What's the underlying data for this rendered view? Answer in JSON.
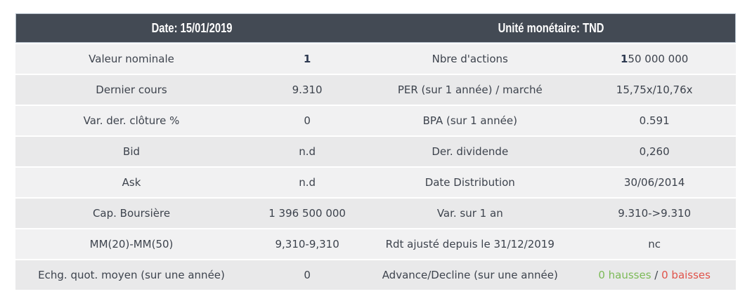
{
  "header": {
    "left_title": "Date: 15/01/2019",
    "right_title": "Unité monétaire: TND"
  },
  "colors": {
    "header_bg": "#434a54",
    "header_text": "#ffffff",
    "row_light": "#f1f1f2",
    "row_dark": "#e9e9ea",
    "text": "#3d434d",
    "hausses_green": "#7cba57",
    "baisses_red": "#e0534a"
  },
  "rows": [
    {
      "left_label": "Valeur nominale",
      "left_value_bold": "1",
      "left_value_rest": "",
      "right_label": "Nbre d'actions",
      "right_value_bold": "1",
      "right_value_rest": "50 000 000"
    },
    {
      "left_label": "Dernier cours",
      "left_value": "9.310",
      "right_label": "PER (sur 1 année) / marché",
      "right_value": "15,75x/10,76x"
    },
    {
      "left_label": "Var. der. clôture %",
      "left_value": "0",
      "right_label": "BPA (sur 1 année)",
      "right_value": "0.591"
    },
    {
      "left_label": "Bid",
      "left_value": "n.d",
      "right_label": "Der. dividende",
      "right_value": "0,260"
    },
    {
      "left_label": "Ask",
      "left_value": "n.d",
      "right_label": "Date Distribution",
      "right_value": "30/06/2014"
    },
    {
      "left_label": "Cap. Boursière",
      "left_value": "1 396 500 000",
      "right_label": "Var. sur 1 an",
      "right_value": "9.310->9.310"
    },
    {
      "left_label": "MM(20)-MM(50)",
      "left_value": "9,310-9,310",
      "right_label": "Rdt ajusté depuis le 31/12/2019",
      "right_value": "nc"
    },
    {
      "left_label": "Echg. quot. moyen (sur une année)",
      "left_value": "0",
      "right_label": "Advance/Decline (sur une année)",
      "right_value_green": "0 hausses",
      "right_value_sep": " / ",
      "right_value_red": "0 baisses"
    }
  ]
}
